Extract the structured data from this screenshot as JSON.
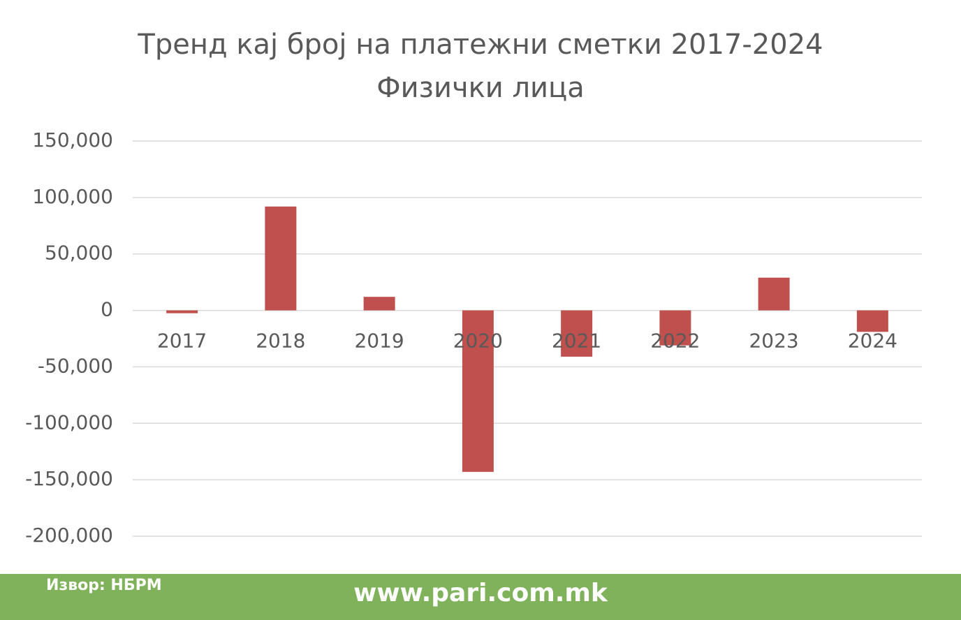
{
  "chart_data": {
    "type": "bar",
    "title": "Тренд кај број на платежни сметки 2017-2024",
    "subtitle": "Физички лица",
    "categories": [
      "2017",
      "2018",
      "2019",
      "2020",
      "2021",
      "2022",
      "2023",
      "2024"
    ],
    "values": [
      -2500,
      92000,
      12000,
      -143000,
      -41000,
      -31000,
      29000,
      -19000
    ],
    "color": "#c0504d",
    "ylim": [
      -200000,
      150000
    ],
    "yticks": [
      {
        "value": -200000,
        "label": "-200,000"
      },
      {
        "value": -150000,
        "label": "-150,000"
      },
      {
        "value": -100000,
        "label": "-100,000"
      },
      {
        "value": -50000,
        "label": "-50,000"
      },
      0,
      {
        "value": 50000,
        "label": "50,000"
      },
      {
        "value": 100000,
        "label": "100,000"
      },
      {
        "value": 150000,
        "label": "150,000"
      }
    ],
    "grid": true
  },
  "footer": {
    "source": "Извор: НБРМ",
    "website": "www.pari.com.mk"
  }
}
